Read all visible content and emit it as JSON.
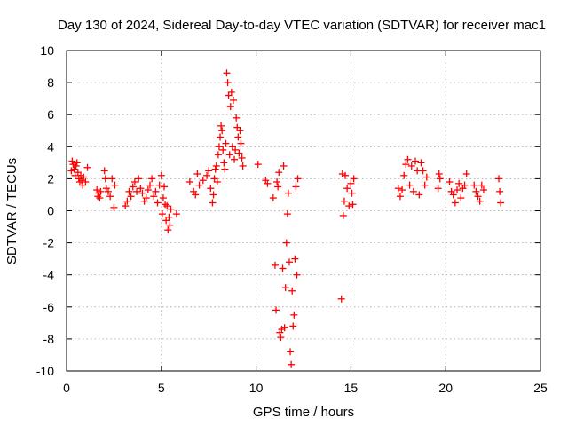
{
  "chart_data": {
    "type": "scatter",
    "title": "Day 130 of 2024, Sidereal Day-to-day VTEC variation (SDTVAR) for receiver mac1",
    "xlabel": "GPS time / hours",
    "ylabel": "SDTVAR / TECUs",
    "xlim": [
      0,
      25
    ],
    "ylim": [
      -10,
      10
    ],
    "xticks": [
      0,
      5,
      10,
      15,
      20,
      25
    ],
    "yticks": [
      -10,
      -8,
      -6,
      -4,
      -2,
      0,
      2,
      4,
      6,
      8,
      10
    ],
    "grid": true,
    "marker": "plus",
    "color": "#ff0000",
    "series": [
      {
        "name": "SDTVAR",
        "x": [
          0.25,
          0.3,
          0.35,
          0.4,
          0.45,
          0.5,
          0.55,
          0.6,
          0.65,
          0.7,
          0.75,
          0.8,
          0.85,
          0.9,
          1.0,
          1.1,
          1.6,
          1.65,
          1.7,
          1.75,
          1.8,
          2.0,
          2.05,
          2.1,
          2.2,
          2.3,
          2.4,
          2.5,
          2.55,
          3.1,
          3.2,
          3.3,
          3.4,
          3.5,
          3.6,
          3.7,
          3.8,
          3.9,
          4.0,
          4.1,
          4.2,
          4.3,
          4.4,
          4.5,
          4.6,
          4.7,
          4.8,
          4.9,
          5.0,
          5.05,
          5.1,
          5.15,
          5.2,
          5.25,
          5.3,
          5.35,
          5.4,
          5.45,
          5.5,
          5.8,
          6.5,
          6.7,
          6.8,
          6.9,
          7.0,
          7.2,
          7.4,
          7.5,
          7.6,
          7.7,
          7.75,
          7.8,
          7.85,
          7.9,
          7.95,
          8.0,
          8.05,
          8.1,
          8.15,
          8.2,
          8.25,
          8.3,
          8.35,
          8.4,
          8.45,
          8.5,
          8.55,
          8.6,
          8.65,
          8.7,
          8.75,
          8.8,
          8.85,
          8.9,
          8.95,
          9.0,
          9.05,
          9.1,
          9.15,
          9.2,
          9.25,
          9.3,
          10.1,
          10.5,
          10.6,
          10.9,
          11.0,
          11.05,
          11.1,
          11.15,
          11.2,
          11.25,
          11.3,
          11.35,
          11.4,
          11.45,
          11.5,
          11.55,
          11.6,
          11.65,
          11.7,
          11.75,
          11.8,
          11.85,
          11.9,
          11.95,
          12.0,
          12.05,
          12.1,
          12.15,
          12.2,
          14.5,
          14.55,
          14.6,
          14.65,
          14.7,
          14.8,
          14.9,
          15.0,
          15.05,
          15.1,
          15.15,
          17.5,
          17.6,
          17.7,
          17.8,
          17.9,
          18.0,
          18.1,
          18.2,
          18.3,
          18.4,
          18.5,
          18.6,
          18.7,
          18.8,
          18.9,
          19.0,
          19.6,
          19.65,
          19.7,
          20.2,
          20.3,
          20.4,
          20.5,
          20.6,
          20.7,
          20.8,
          20.9,
          21.0,
          21.1,
          21.5,
          21.6,
          21.7,
          21.8,
          21.9,
          22.0,
          22.8,
          22.85,
          22.9
        ],
        "y": [
          2.5,
          3.1,
          2.9,
          2.6,
          2.2,
          2.8,
          3.0,
          2.4,
          2.0,
          1.8,
          2.2,
          1.9,
          1.6,
          2.1,
          1.8,
          2.7,
          1.3,
          0.9,
          1.1,
          0.8,
          1.2,
          2.5,
          2.0,
          1.4,
          1.2,
          0.9,
          2.0,
          0.2,
          1.6,
          0.3,
          0.6,
          1.2,
          0.9,
          1.5,
          1.8,
          1.2,
          2.0,
          1.4,
          1.1,
          0.6,
          0.8,
          1.3,
          1.6,
          2.0,
          0.9,
          1.2,
          0.5,
          1.6,
          2.2,
          -0.2,
          0.8,
          1.5,
          0.4,
          -0.6,
          0.3,
          -1.2,
          -0.4,
          -0.9,
          0.1,
          -0.2,
          1.8,
          1.2,
          1.0,
          2.3,
          1.6,
          1.9,
          2.2,
          2.5,
          1.4,
          0.5,
          1.0,
          2.0,
          2.6,
          2.8,
          1.8,
          3.5,
          4.0,
          4.6,
          5.3,
          5.0,
          3.8,
          3.0,
          2.6,
          4.2,
          8.6,
          8.0,
          7.2,
          3.5,
          6.5,
          7.4,
          4.0,
          6.9,
          3.2,
          3.8,
          5.8,
          5.2,
          4.6,
          3.6,
          5.0,
          4.2,
          3.3,
          2.8,
          2.9,
          1.9,
          1.7,
          0.8,
          -3.4,
          -6.2,
          1.8,
          1.5,
          2.4,
          -7.6,
          -7.9,
          -7.4,
          -3.6,
          2.8,
          -7.3,
          -4.8,
          -2.0,
          -0.2,
          1.1,
          -3.2,
          -8.8,
          -9.6,
          -5.0,
          -7.2,
          -6.5,
          -3.0,
          1.5,
          -4.0,
          2.0,
          -5.5,
          2.3,
          -0.3,
          0.6,
          2.2,
          1.4,
          0.3,
          1.7,
          1.1,
          0.4,
          2.0,
          1.4,
          0.9,
          1.3,
          2.2,
          2.9,
          3.2,
          1.6,
          2.8,
          1.2,
          3.1,
          2.5,
          1.0,
          3.0,
          2.5,
          1.6,
          2.1,
          1.4,
          2.3,
          2.0,
          1.8,
          1.2,
          1.0,
          0.5,
          1.3,
          1.7,
          0.8,
          1.4,
          1.6,
          2.3,
          1.6,
          1.2,
          0.9,
          0.6,
          1.6,
          1.3,
          2.0,
          1.2,
          0.5
        ]
      }
    ]
  }
}
